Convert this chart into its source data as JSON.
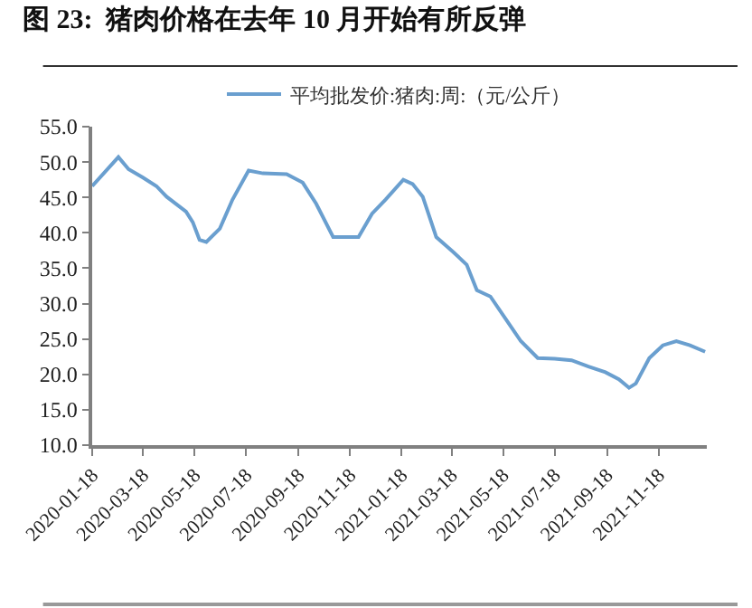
{
  "chart_data": {
    "type": "line",
    "title": "图 23:  猪肉价格在去年 10 月开始有所反弹",
    "x": [
      "2020-01-18",
      "2020-02-18",
      "2020-03-01",
      "2020-03-18",
      "2020-04-03",
      "2020-04-15",
      "2020-05-08",
      "2020-05-16",
      "2020-05-24",
      "2020-06-01",
      "2020-06-17",
      "2020-07-02",
      "2020-07-21",
      "2020-08-07",
      "2020-09-04",
      "2020-09-23",
      "2020-10-09",
      "2020-10-29",
      "2020-11-28",
      "2020-12-14",
      "2020-12-30",
      "2021-01-20",
      "2021-01-31",
      "2021-02-12",
      "2021-02-28",
      "2021-03-20",
      "2021-04-05",
      "2021-04-17",
      "2021-05-03",
      "2021-05-23",
      "2021-06-08",
      "2021-06-28",
      "2021-07-18",
      "2021-08-07",
      "2021-08-27",
      "2021-09-16",
      "2021-10-02",
      "2021-10-14",
      "2021-10-22",
      "2021-11-07",
      "2021-11-23",
      "2021-12-09",
      "2021-12-25",
      "2022-01-12"
    ],
    "series": [
      {
        "name": "平均批发价:猪肉:周:（元/公斤）",
        "color": "#6a9fcf",
        "values": [
          46.6,
          50.7,
          49.0,
          47.8,
          46.6,
          45.1,
          43.0,
          41.5,
          39.0,
          38.7,
          40.6,
          44.7,
          48.8,
          48.4,
          48.3,
          47.1,
          44.1,
          39.4,
          39.4,
          42.7,
          44.7,
          47.5,
          46.9,
          45.1,
          39.4,
          37.3,
          35.5,
          31.9,
          31.0,
          27.5,
          24.7,
          22.3,
          22.2,
          22.0,
          21.1,
          20.3,
          19.3,
          18.1,
          18.7,
          22.3,
          24.1,
          24.7,
          24.1,
          23.2
        ]
      }
    ],
    "xlim": [
      "2020-01-18",
      "2022-01-14"
    ],
    "xticks": [
      "2020-01-18",
      "2020-03-18",
      "2020-05-18",
      "2020-07-18",
      "2020-09-18",
      "2020-11-18",
      "2021-01-18",
      "2021-03-18",
      "2021-05-18",
      "2021-07-18",
      "2021-09-18",
      "2021-11-18"
    ],
    "ylim": [
      10,
      55
    ],
    "yticks": [
      {
        "value": 10,
        "label": "10.0"
      },
      {
        "value": 15,
        "label": "15.0"
      },
      {
        "value": 20,
        "label": "20.0"
      },
      {
        "value": 25,
        "label": "25.0"
      },
      {
        "value": 30,
        "label": "30.0"
      },
      {
        "value": 35,
        "label": "35.0"
      },
      {
        "value": 40,
        "label": "40.0"
      },
      {
        "value": 45,
        "label": "45.0"
      },
      {
        "value": 50,
        "label": "50.0"
      },
      {
        "value": 55,
        "label": "55.0"
      }
    ],
    "legend": "top",
    "marker": "none",
    "line_style": "solid"
  }
}
